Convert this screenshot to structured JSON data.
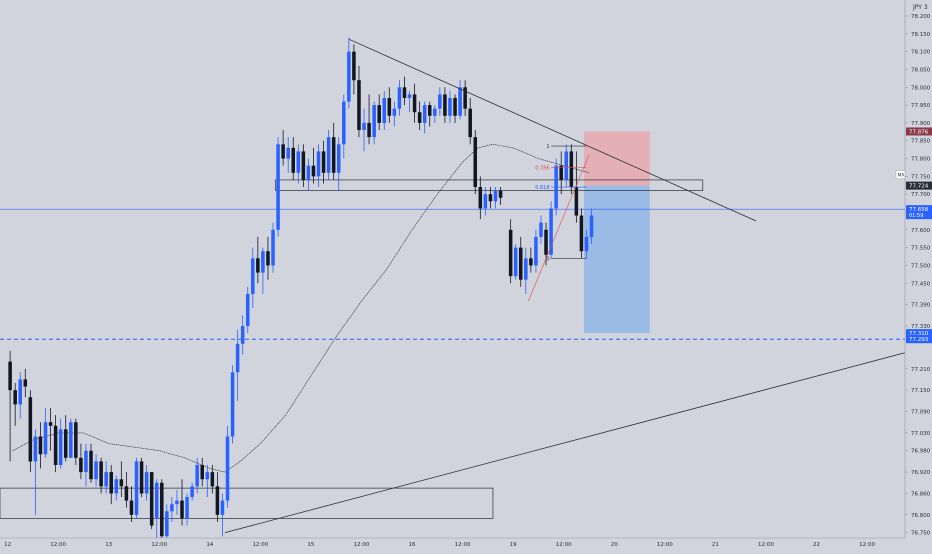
{
  "chart_data": {
    "type": "candlestick",
    "symbol": "JPY 3",
    "ma_label": "MA",
    "y_ticks": [
      "78.200",
      "78.150",
      "78.100",
      "78.050",
      "78.000",
      "77.950",
      "77.900",
      "77.850",
      "77.800",
      "77.750",
      "77.700",
      "77.650",
      "77.600",
      "77.550",
      "77.500",
      "77.450",
      "77.390",
      "77.330",
      "77.310",
      "77.210",
      "77.150",
      "77.090",
      "77.030",
      "76.980",
      "76.920",
      "76.860",
      "76.800",
      "76.750"
    ],
    "y_tick_values": [
      78.2,
      78.15,
      78.1,
      78.05,
      78.0,
      77.95,
      77.9,
      77.85,
      77.8,
      77.75,
      77.7,
      77.65,
      77.6,
      77.55,
      77.5,
      77.45,
      77.39,
      77.33,
      77.31,
      77.21,
      77.15,
      77.09,
      77.03,
      76.98,
      76.92,
      76.86,
      76.8,
      76.75
    ],
    "ylim": [
      76.735,
      78.245
    ],
    "x_labels": [
      {
        "t": 0,
        "label": "12"
      },
      {
        "t": 1,
        "label": "12:00"
      },
      {
        "t": 2,
        "label": "13"
      },
      {
        "t": 3,
        "label": "12:00"
      },
      {
        "t": 4,
        "label": "14"
      },
      {
        "t": 5,
        "label": "12:00"
      },
      {
        "t": 6,
        "label": "15"
      },
      {
        "t": 7,
        "label": "12:00"
      },
      {
        "t": 8,
        "label": "16"
      },
      {
        "t": 9,
        "label": "12:00"
      },
      {
        "t": 10,
        "label": "19"
      },
      {
        "t": 11,
        "label": "12:00"
      },
      {
        "t": 12,
        "label": "20"
      },
      {
        "t": 13,
        "label": "12:00"
      },
      {
        "t": 14,
        "label": "21"
      },
      {
        "t": 15,
        "label": "12:00"
      },
      {
        "t": 16,
        "label": "22"
      },
      {
        "t": 17,
        "label": "12:00"
      }
    ],
    "x_range": [
      -0.15,
      17.75
    ],
    "price_labels": [
      {
        "value": 77.876,
        "label": "77.876",
        "color": "#8b3a48"
      },
      {
        "value": 77.724,
        "label": "77.724",
        "color": "#2a2e39"
      },
      {
        "value": 77.658,
        "label": "77.658",
        "sub": "01:59",
        "color": "#2962ff"
      },
      {
        "value": 77.31,
        "label": "77.310",
        "color": "#2962ff"
      },
      {
        "value": 77.293,
        "label": "77.293",
        "color": "#2962ff"
      }
    ],
    "fib_labels": [
      {
        "value": 77.835,
        "label": "1",
        "color": "#2a2e39"
      },
      {
        "value": 77.775,
        "label": "0.786",
        "color": "#e05050"
      },
      {
        "value": 77.72,
        "label": "0.618",
        "color": "#2962ff"
      },
      {
        "value": 77.52,
        "label": "0",
        "color": "#2a2e39"
      }
    ],
    "zones": [
      {
        "t0": 11.4,
        "t1": 12.7,
        "top": 77.876,
        "bottom": 77.724,
        "color": "#e8a9ae"
      },
      {
        "t0": 11.4,
        "t1": 12.7,
        "top": 77.724,
        "bottom": 77.31,
        "color": "#8fb6e8"
      }
    ],
    "hlines": [
      {
        "value": 77.658,
        "color": "#2962ff",
        "dash": false
      },
      {
        "value": 77.293,
        "color": "#2962ff",
        "dash": true
      }
    ],
    "boxes": [
      {
        "t0": 5.3,
        "t1": 13.75,
        "top": 77.74,
        "bottom": 77.71
      },
      {
        "t0": -0.15,
        "t1": 9.6,
        "top": 76.875,
        "bottom": 76.79
      }
    ],
    "trendlines": [
      {
        "t0": 6.75,
        "v0": 78.135,
        "t1": 14.8,
        "v1": 77.625,
        "color": "#2a2e39"
      },
      {
        "t0": 4.3,
        "v0": 76.75,
        "t1": 17.75,
        "v1": 77.255,
        "color": "#2a2e39"
      }
    ],
    "candles_ohlc": [
      {
        "t": 0.05,
        "o": 77.23,
        "h": 77.26,
        "l": 76.95,
        "c": 77.15
      },
      {
        "t": 0.15,
        "o": 77.15,
        "h": 77.17,
        "l": 77.05,
        "c": 77.11
      },
      {
        "t": 0.25,
        "o": 77.11,
        "h": 77.2,
        "l": 77.07,
        "c": 77.18
      },
      {
        "t": 0.35,
        "o": 77.18,
        "h": 77.21,
        "l": 77.13,
        "c": 77.16
      },
      {
        "t": 0.45,
        "o": 77.13,
        "h": 77.15,
        "l": 76.92,
        "c": 76.95
      },
      {
        "t": 0.55,
        "o": 76.95,
        "h": 77.04,
        "l": 76.8,
        "c": 77.02
      },
      {
        "t": 0.65,
        "o": 77.02,
        "h": 77.06,
        "l": 76.93,
        "c": 76.97
      },
      {
        "t": 0.75,
        "o": 76.97,
        "h": 77.1,
        "l": 76.96,
        "c": 77.06
      },
      {
        "t": 0.85,
        "o": 77.06,
        "h": 77.1,
        "l": 76.98,
        "c": 77.05
      },
      {
        "t": 0.95,
        "o": 77.05,
        "h": 77.08,
        "l": 76.92,
        "c": 76.94
      },
      {
        "t": 1.05,
        "o": 76.94,
        "h": 77.07,
        "l": 76.93,
        "c": 77.04
      },
      {
        "t": 1.15,
        "o": 77.04,
        "h": 77.08,
        "l": 76.95,
        "c": 76.96
      },
      {
        "t": 1.25,
        "o": 76.96,
        "h": 77.07,
        "l": 76.96,
        "c": 77.06
      },
      {
        "t": 1.35,
        "o": 77.06,
        "h": 77.07,
        "l": 76.94,
        "c": 76.96
      },
      {
        "t": 1.45,
        "o": 76.96,
        "h": 77.0,
        "l": 76.9,
        "c": 76.92
      },
      {
        "t": 1.55,
        "o": 76.92,
        "h": 77.0,
        "l": 76.88,
        "c": 76.98
      },
      {
        "t": 1.65,
        "o": 76.98,
        "h": 77.0,
        "l": 76.89,
        "c": 76.9
      },
      {
        "t": 1.75,
        "o": 76.9,
        "h": 76.97,
        "l": 76.88,
        "c": 76.95
      },
      {
        "t": 1.85,
        "o": 76.95,
        "h": 76.96,
        "l": 76.86,
        "c": 76.88
      },
      {
        "t": 1.95,
        "o": 76.88,
        "h": 76.95,
        "l": 76.86,
        "c": 76.92
      },
      {
        "t": 2.05,
        "o": 76.92,
        "h": 76.94,
        "l": 76.83,
        "c": 76.86
      },
      {
        "t": 2.15,
        "o": 76.86,
        "h": 76.91,
        "l": 76.84,
        "c": 76.9
      },
      {
        "t": 2.25,
        "o": 76.9,
        "h": 76.95,
        "l": 76.85,
        "c": 76.88
      },
      {
        "t": 2.35,
        "o": 76.88,
        "h": 76.92,
        "l": 76.82,
        "c": 76.84
      },
      {
        "t": 2.45,
        "o": 76.84,
        "h": 76.88,
        "l": 76.78,
        "c": 76.8
      },
      {
        "t": 2.55,
        "o": 76.8,
        "h": 76.96,
        "l": 76.79,
        "c": 76.95
      },
      {
        "t": 2.65,
        "o": 76.95,
        "h": 76.96,
        "l": 76.85,
        "c": 76.86
      },
      {
        "t": 2.75,
        "o": 76.86,
        "h": 76.94,
        "l": 76.84,
        "c": 76.92
      },
      {
        "t": 2.85,
        "o": 76.92,
        "h": 76.92,
        "l": 76.76,
        "c": 76.77
      },
      {
        "t": 2.95,
        "o": 76.79,
        "h": 76.9,
        "l": 76.72,
        "c": 76.89
      },
      {
        "t": 3.05,
        "o": 76.89,
        "h": 76.9,
        "l": 76.72,
        "c": 76.74
      },
      {
        "t": 3.15,
        "o": 76.74,
        "h": 76.83,
        "l": 76.73,
        "c": 76.81
      },
      {
        "t": 3.25,
        "o": 76.81,
        "h": 76.85,
        "l": 76.78,
        "c": 76.83
      },
      {
        "t": 3.35,
        "o": 76.83,
        "h": 76.87,
        "l": 76.8,
        "c": 76.84
      },
      {
        "t": 3.45,
        "o": 76.84,
        "h": 76.9,
        "l": 76.77,
        "c": 76.79
      },
      {
        "t": 3.55,
        "o": 76.79,
        "h": 76.86,
        "l": 76.77,
        "c": 76.85
      },
      {
        "t": 3.65,
        "o": 76.85,
        "h": 76.89,
        "l": 76.84,
        "c": 76.88
      },
      {
        "t": 3.75,
        "o": 76.88,
        "h": 76.96,
        "l": 76.86,
        "c": 76.94
      },
      {
        "t": 3.85,
        "o": 76.94,
        "h": 76.96,
        "l": 76.88,
        "c": 76.9
      },
      {
        "t": 3.95,
        "o": 76.9,
        "h": 76.94,
        "l": 76.85,
        "c": 76.92
      },
      {
        "t": 4.05,
        "o": 76.92,
        "h": 76.94,
        "l": 76.86,
        "c": 76.88
      },
      {
        "t": 4.15,
        "o": 76.88,
        "h": 76.92,
        "l": 76.78,
        "c": 76.8
      },
      {
        "t": 4.25,
        "o": 76.8,
        "h": 76.86,
        "l": 76.74,
        "c": 76.84
      },
      {
        "t": 4.35,
        "o": 76.84,
        "h": 77.05,
        "l": 76.82,
        "c": 77.02
      },
      {
        "t": 4.45,
        "o": 77.02,
        "h": 77.22,
        "l": 77.0,
        "c": 77.2
      },
      {
        "t": 4.55,
        "o": 77.2,
        "h": 77.32,
        "l": 77.12,
        "c": 77.28
      },
      {
        "t": 4.65,
        "o": 77.28,
        "h": 77.36,
        "l": 77.25,
        "c": 77.33
      },
      {
        "t": 4.75,
        "o": 77.33,
        "h": 77.44,
        "l": 77.31,
        "c": 77.42
      },
      {
        "t": 4.85,
        "o": 77.42,
        "h": 77.55,
        "l": 77.38,
        "c": 77.52
      },
      {
        "t": 4.95,
        "o": 77.52,
        "h": 77.58,
        "l": 77.45,
        "c": 77.48
      },
      {
        "t": 5.05,
        "o": 77.48,
        "h": 77.55,
        "l": 77.42,
        "c": 77.54
      },
      {
        "t": 5.15,
        "o": 77.54,
        "h": 77.58,
        "l": 77.46,
        "c": 77.5
      },
      {
        "t": 5.25,
        "o": 77.5,
        "h": 77.62,
        "l": 77.48,
        "c": 77.6
      },
      {
        "t": 5.35,
        "o": 77.6,
        "h": 77.86,
        "l": 77.58,
        "c": 77.84
      },
      {
        "t": 5.45,
        "o": 77.84,
        "h": 77.88,
        "l": 77.78,
        "c": 77.8
      },
      {
        "t": 5.55,
        "o": 77.8,
        "h": 77.86,
        "l": 77.76,
        "c": 77.83
      },
      {
        "t": 5.65,
        "o": 77.83,
        "h": 77.86,
        "l": 77.74,
        "c": 77.76
      },
      {
        "t": 5.75,
        "o": 77.76,
        "h": 77.84,
        "l": 77.73,
        "c": 77.82
      },
      {
        "t": 5.85,
        "o": 77.82,
        "h": 77.84,
        "l": 77.72,
        "c": 77.74
      },
      {
        "t": 5.95,
        "o": 77.74,
        "h": 77.8,
        "l": 77.71,
        "c": 77.78
      },
      {
        "t": 6.05,
        "o": 77.78,
        "h": 77.83,
        "l": 77.73,
        "c": 77.75
      },
      {
        "t": 6.15,
        "o": 77.75,
        "h": 77.84,
        "l": 77.72,
        "c": 77.82
      },
      {
        "t": 6.25,
        "o": 77.82,
        "h": 77.85,
        "l": 77.73,
        "c": 77.76
      },
      {
        "t": 6.35,
        "o": 77.76,
        "h": 77.88,
        "l": 77.74,
        "c": 77.86
      },
      {
        "t": 6.45,
        "o": 77.86,
        "h": 77.9,
        "l": 77.74,
        "c": 77.76
      },
      {
        "t": 6.55,
        "o": 77.76,
        "h": 77.86,
        "l": 77.71,
        "c": 77.84
      },
      {
        "t": 6.65,
        "o": 77.84,
        "h": 77.98,
        "l": 77.8,
        "c": 77.96
      },
      {
        "t": 6.75,
        "o": 77.96,
        "h": 78.14,
        "l": 77.94,
        "c": 78.1
      },
      {
        "t": 6.85,
        "o": 78.1,
        "h": 78.12,
        "l": 77.98,
        "c": 78.02
      },
      {
        "t": 6.95,
        "o": 78.02,
        "h": 78.06,
        "l": 77.86,
        "c": 77.88
      },
      {
        "t": 7.05,
        "o": 77.88,
        "h": 77.94,
        "l": 77.82,
        "c": 77.9
      },
      {
        "t": 7.15,
        "o": 77.9,
        "h": 77.98,
        "l": 77.84,
        "c": 77.86
      },
      {
        "t": 7.25,
        "o": 77.86,
        "h": 77.96,
        "l": 77.84,
        "c": 77.95
      },
      {
        "t": 7.35,
        "o": 77.95,
        "h": 77.98,
        "l": 77.88,
        "c": 77.9
      },
      {
        "t": 7.45,
        "o": 77.9,
        "h": 77.99,
        "l": 77.88,
        "c": 77.97
      },
      {
        "t": 7.55,
        "o": 77.97,
        "h": 78.0,
        "l": 77.9,
        "c": 77.92
      },
      {
        "t": 7.65,
        "o": 77.92,
        "h": 77.96,
        "l": 77.89,
        "c": 77.94
      },
      {
        "t": 7.75,
        "o": 77.94,
        "h": 78.02,
        "l": 77.92,
        "c": 78.0
      },
      {
        "t": 7.85,
        "o": 78.0,
        "h": 78.03,
        "l": 77.95,
        "c": 77.97
      },
      {
        "t": 7.95,
        "o": 77.97,
        "h": 77.99,
        "l": 77.93,
        "c": 77.98
      },
      {
        "t": 8.05,
        "o": 77.98,
        "h": 78.01,
        "l": 77.9,
        "c": 77.93
      },
      {
        "t": 8.15,
        "o": 77.93,
        "h": 77.96,
        "l": 77.88,
        "c": 77.9
      },
      {
        "t": 8.25,
        "o": 77.9,
        "h": 77.96,
        "l": 77.87,
        "c": 77.95
      },
      {
        "t": 8.35,
        "o": 77.95,
        "h": 77.96,
        "l": 77.89,
        "c": 77.92
      },
      {
        "t": 8.45,
        "o": 77.92,
        "h": 77.95,
        "l": 77.9,
        "c": 77.94
      },
      {
        "t": 8.55,
        "o": 77.94,
        "h": 78.0,
        "l": 77.92,
        "c": 77.98
      },
      {
        "t": 8.65,
        "o": 77.98,
        "h": 78.0,
        "l": 77.9,
        "c": 77.92
      },
      {
        "t": 8.75,
        "o": 77.92,
        "h": 77.99,
        "l": 77.9,
        "c": 77.97
      },
      {
        "t": 8.85,
        "o": 77.97,
        "h": 77.98,
        "l": 77.9,
        "c": 77.92
      },
      {
        "t": 8.95,
        "o": 77.92,
        "h": 78.02,
        "l": 77.91,
        "c": 78.0
      },
      {
        "t": 9.05,
        "o": 78.0,
        "h": 78.02,
        "l": 77.92,
        "c": 77.94
      },
      {
        "t": 9.15,
        "o": 77.94,
        "h": 77.97,
        "l": 77.84,
        "c": 77.86
      },
      {
        "t": 9.25,
        "o": 77.86,
        "h": 77.88,
        "l": 77.7,
        "c": 77.72
      },
      {
        "t": 9.35,
        "o": 77.72,
        "h": 77.75,
        "l": 77.63,
        "c": 77.66
      },
      {
        "t": 9.45,
        "o": 77.66,
        "h": 77.72,
        "l": 77.64,
        "c": 77.7
      },
      {
        "t": 9.55,
        "o": 77.7,
        "h": 77.72,
        "l": 77.66,
        "c": 77.68
      },
      {
        "t": 9.65,
        "o": 77.68,
        "h": 77.72,
        "l": 77.66,
        "c": 77.71
      },
      {
        "t": 9.75,
        "o": 77.71,
        "h": 77.72,
        "l": 77.67,
        "c": 77.69
      },
      {
        "t": 9.95,
        "o": 77.6,
        "h": 77.63,
        "l": 77.45,
        "c": 77.47
      },
      {
        "t": 10.05,
        "o": 77.47,
        "h": 77.56,
        "l": 77.46,
        "c": 77.55
      },
      {
        "t": 10.15,
        "o": 77.55,
        "h": 77.58,
        "l": 77.44,
        "c": 77.46
      },
      {
        "t": 10.25,
        "o": 77.46,
        "h": 77.55,
        "l": 77.42,
        "c": 77.52
      },
      {
        "t": 10.35,
        "o": 77.52,
        "h": 77.55,
        "l": 77.48,
        "c": 77.5
      },
      {
        "t": 10.45,
        "o": 77.5,
        "h": 77.6,
        "l": 77.48,
        "c": 77.58
      },
      {
        "t": 10.55,
        "o": 77.58,
        "h": 77.64,
        "l": 77.56,
        "c": 77.62
      },
      {
        "t": 10.65,
        "o": 77.6,
        "h": 77.62,
        "l": 77.5,
        "c": 77.53
      },
      {
        "t": 10.75,
        "o": 77.53,
        "h": 77.68,
        "l": 77.52,
        "c": 77.66
      },
      {
        "t": 10.85,
        "o": 77.66,
        "h": 77.8,
        "l": 77.64,
        "c": 77.78
      },
      {
        "t": 10.95,
        "o": 77.78,
        "h": 77.82,
        "l": 77.7,
        "c": 77.74
      },
      {
        "t": 11.05,
        "o": 77.74,
        "h": 77.84,
        "l": 77.72,
        "c": 77.82
      },
      {
        "t": 11.15,
        "o": 77.82,
        "h": 77.84,
        "l": 77.7,
        "c": 77.72
      },
      {
        "t": 11.25,
        "o": 77.72,
        "h": 77.82,
        "l": 77.62,
        "c": 77.64
      },
      {
        "t": 11.35,
        "o": 77.64,
        "h": 77.66,
        "l": 77.52,
        "c": 77.54
      },
      {
        "t": 11.45,
        "o": 77.54,
        "h": 77.6,
        "l": 77.52,
        "c": 77.58
      },
      {
        "t": 11.55,
        "o": 77.58,
        "h": 77.66,
        "l": 77.56,
        "c": 77.64
      }
    ],
    "ma": [
      [
        0.1,
        76.98
      ],
      [
        0.5,
        77.01
      ],
      [
        1.0,
        77.03
      ],
      [
        1.5,
        77.03
      ],
      [
        2.0,
        77.0
      ],
      [
        2.5,
        76.99
      ],
      [
        3.0,
        76.98
      ],
      [
        3.5,
        76.96
      ],
      [
        4.0,
        76.93
      ],
      [
        4.3,
        76.92
      ],
      [
        4.6,
        76.95
      ],
      [
        5.0,
        77.0
      ],
      [
        5.5,
        77.08
      ],
      [
        6.0,
        77.19
      ],
      [
        6.5,
        77.3
      ],
      [
        7.0,
        77.4
      ],
      [
        7.5,
        77.49
      ],
      [
        8.0,
        77.6
      ],
      [
        8.5,
        77.7
      ],
      [
        9.0,
        77.79
      ],
      [
        9.3,
        77.83
      ],
      [
        9.6,
        77.84
      ],
      [
        10.0,
        77.83
      ],
      [
        10.5,
        77.8
      ],
      [
        11.0,
        77.78
      ],
      [
        11.5,
        77.76
      ]
    ],
    "fib_tool": {
      "t0": 10.3,
      "t1": 11.35,
      "low": 77.4,
      "high": 77.83,
      "color": "#e05050"
    }
  }
}
